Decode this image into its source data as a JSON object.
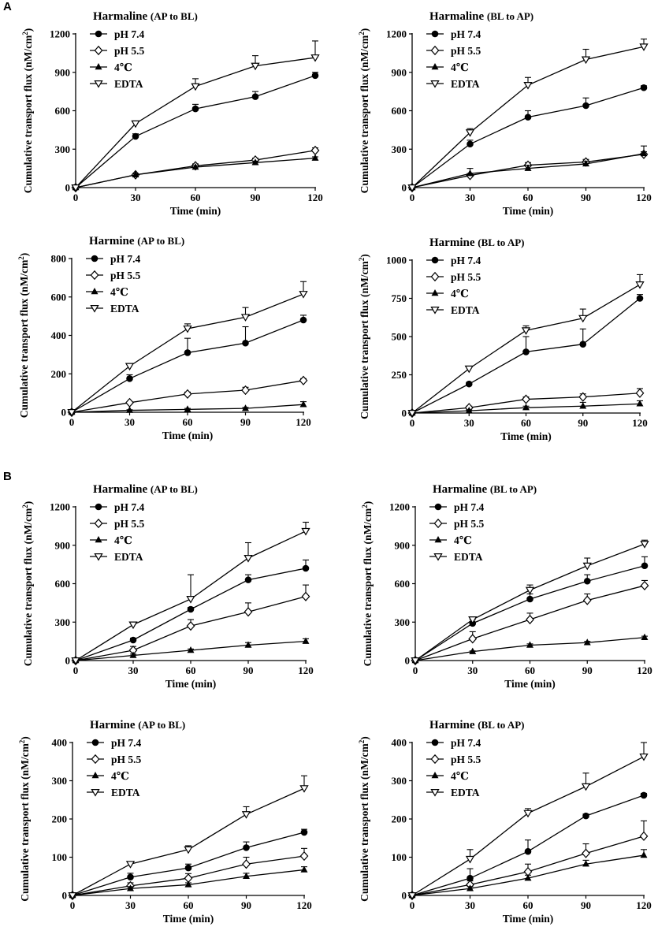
{
  "figure": {
    "panel_label_a": "A",
    "panel_label_b": "B"
  },
  "chart_data": [
    {
      "type": "line",
      "title_bold": "Harmaline",
      "title_dir": "(AP to BL)",
      "xlabel": "Time (min)",
      "ylabel": "Cumulative transport flux (nM/cm",
      "ylabel_sup": "2",
      "ylabel_end": ")",
      "x": [
        0,
        30,
        60,
        90,
        120
      ],
      "xlim": [
        0,
        120
      ],
      "ylim": [
        0,
        1200
      ],
      "yticks": [
        0,
        300,
        600,
        900,
        1200
      ],
      "series": [
        {
          "name": "pH 7.4",
          "marker": "circle",
          "values": [
            0,
            400,
            615,
            710,
            875
          ],
          "err": [
            0,
            20,
            35,
            40,
            25
          ]
        },
        {
          "name": "pH 5.5",
          "marker": "diamond",
          "values": [
            0,
            100,
            170,
            215,
            290
          ],
          "err": [
            0,
            10,
            15,
            15,
            20
          ]
        },
        {
          "name": "4℃",
          "marker": "triangle",
          "values": [
            0,
            100,
            160,
            195,
            230
          ],
          "err": [
            0,
            8,
            12,
            12,
            10
          ]
        },
        {
          "name": "EDTA",
          "marker": "tri-down",
          "values": [
            0,
            500,
            790,
            950,
            1015
          ],
          "err": [
            0,
            20,
            60,
            80,
            130
          ]
        }
      ]
    },
    {
      "type": "line",
      "title_bold": "Harmaline",
      "title_dir": "(BL to AP)",
      "xlabel": "Time (min)",
      "ylabel": "Cumulative transport flux (nM/cm",
      "ylabel_sup": "2",
      "ylabel_end": ")",
      "x": [
        0,
        30,
        60,
        90,
        120
      ],
      "xlim": [
        0,
        120
      ],
      "ylim": [
        0,
        1200
      ],
      "yticks": [
        0,
        300,
        600,
        900,
        1200
      ],
      "series": [
        {
          "name": "pH 7.4",
          "marker": "circle",
          "values": [
            0,
            340,
            550,
            640,
            780
          ],
          "err": [
            0,
            30,
            50,
            60,
            15
          ]
        },
        {
          "name": "pH 5.5",
          "marker": "diamond",
          "values": [
            0,
            95,
            175,
            200,
            260
          ],
          "err": [
            0,
            15,
            20,
            20,
            20
          ]
        },
        {
          "name": "4℃",
          "marker": "triangle",
          "values": [
            0,
            110,
            150,
            185,
            265
          ],
          "err": [
            0,
            40,
            25,
            20,
            60
          ]
        },
        {
          "name": "EDTA",
          "marker": "tri-down",
          "values": [
            0,
            430,
            800,
            1000,
            1100
          ],
          "err": [
            0,
            30,
            60,
            80,
            60
          ]
        }
      ]
    },
    {
      "type": "line",
      "title_bold": "Harmine",
      "title_dir": "(AP to BL)",
      "xlabel": "Time (min)",
      "ylabel": "Cumulative transport flux (nM/cm",
      "ylabel_sup": "2",
      "ylabel_end": ")",
      "x": [
        0,
        30,
        60,
        90,
        120
      ],
      "xlim": [
        0,
        120
      ],
      "ylim": [
        0,
        800
      ],
      "yticks": [
        0,
        200,
        400,
        600,
        800
      ],
      "series": [
        {
          "name": "pH 7.4",
          "marker": "circle",
          "values": [
            0,
            175,
            310,
            360,
            480
          ],
          "err": [
            0,
            20,
            75,
            85,
            25
          ]
        },
        {
          "name": "pH 5.5",
          "marker": "diamond",
          "values": [
            0,
            50,
            95,
            115,
            165
          ],
          "err": [
            0,
            5,
            10,
            15,
            10
          ]
        },
        {
          "name": "4℃",
          "marker": "triangle",
          "values": [
            0,
            10,
            15,
            20,
            40
          ],
          "err": [
            0,
            3,
            5,
            5,
            15
          ]
        },
        {
          "name": "EDTA",
          "marker": "tri-down",
          "values": [
            0,
            240,
            435,
            495,
            615
          ],
          "err": [
            0,
            10,
            25,
            50,
            65
          ]
        }
      ]
    },
    {
      "type": "line",
      "title_bold": "Harmine",
      "title_dir": "(BL to AP)",
      "xlabel": "Time (min)",
      "ylabel": "Cumulative transport flux (nM/cm",
      "ylabel_sup": "2",
      "ylabel_end": ")",
      "x": [
        0,
        30,
        60,
        90,
        120
      ],
      "xlim": [
        0,
        120
      ],
      "ylim": [
        0,
        1000
      ],
      "yticks": [
        0,
        250,
        500,
        750,
        1000
      ],
      "series": [
        {
          "name": "pH 7.4",
          "marker": "circle",
          "values": [
            0,
            190,
            400,
            450,
            750
          ],
          "err": [
            0,
            10,
            100,
            100,
            25
          ]
        },
        {
          "name": "pH 5.5",
          "marker": "diamond",
          "values": [
            0,
            35,
            90,
            105,
            130
          ],
          "err": [
            0,
            10,
            15,
            20,
            30
          ]
        },
        {
          "name": "4℃",
          "marker": "triangle",
          "values": [
            0,
            15,
            35,
            45,
            60
          ],
          "err": [
            0,
            5,
            10,
            25,
            20
          ]
        },
        {
          "name": "EDTA",
          "marker": "tri-down",
          "values": [
            0,
            290,
            540,
            620,
            840
          ],
          "err": [
            0,
            15,
            30,
            60,
            65
          ]
        }
      ]
    },
    {
      "type": "line",
      "title_bold": "Harmaline",
      "title_dir": "(AP to BL)",
      "xlabel": "Time (min)",
      "ylabel": "Cumulative transport flux (nM/cm",
      "ylabel_sup": "2",
      "ylabel_end": ")",
      "x": [
        0,
        30,
        60,
        90,
        120
      ],
      "xlim": [
        0,
        120
      ],
      "ylim": [
        0,
        1200
      ],
      "yticks": [
        0,
        300,
        600,
        900,
        1200
      ],
      "series": [
        {
          "name": "pH 7.4",
          "marker": "circle",
          "values": [
            0,
            160,
            400,
            630,
            720
          ],
          "err": [
            0,
            15,
            15,
            40,
            65
          ]
        },
        {
          "name": "pH 5.5",
          "marker": "diamond",
          "values": [
            0,
            80,
            270,
            380,
            500
          ],
          "err": [
            0,
            30,
            50,
            70,
            90
          ]
        },
        {
          "name": "4℃",
          "marker": "triangle",
          "values": [
            0,
            40,
            80,
            120,
            150
          ],
          "err": [
            0,
            10,
            10,
            20,
            20
          ]
        },
        {
          "name": "EDTA",
          "marker": "tri-down",
          "values": [
            0,
            280,
            480,
            800,
            1010
          ],
          "err": [
            0,
            20,
            190,
            120,
            70
          ]
        }
      ]
    },
    {
      "type": "line",
      "title_bold": "Harmaline",
      "title_dir": "(BL to AP)",
      "xlabel": "Time (min)",
      "ylabel": "Cumulative transport flux (nM/cm",
      "ylabel_sup": "2",
      "ylabel_end": ")",
      "x": [
        0,
        30,
        60,
        90,
        120
      ],
      "xlim": [
        0,
        120
      ],
      "ylim": [
        0,
        1200
      ],
      "yticks": [
        0,
        300,
        600,
        900,
        1200
      ],
      "series": [
        {
          "name": "pH 7.4",
          "marker": "circle",
          "values": [
            0,
            290,
            480,
            620,
            740
          ],
          "err": [
            0,
            30,
            40,
            50,
            70
          ]
        },
        {
          "name": "pH 5.5",
          "marker": "diamond",
          "values": [
            0,
            170,
            320,
            470,
            585
          ],
          "err": [
            0,
            55,
            50,
            50,
            40
          ]
        },
        {
          "name": "4℃",
          "marker": "triangle",
          "values": [
            0,
            70,
            120,
            140,
            180
          ],
          "err": [
            0,
            5,
            10,
            10,
            10
          ]
        },
        {
          "name": "EDTA",
          "marker": "tri-down",
          "values": [
            0,
            320,
            550,
            740,
            910
          ],
          "err": [
            0,
            20,
            40,
            60,
            30
          ]
        }
      ]
    },
    {
      "type": "line",
      "title_bold": "Harmine",
      "title_dir": "(AP to BL)",
      "xlabel": "Time (min)",
      "ylabel": "Cumulative transport flux (nM/cm",
      "ylabel_sup": "2",
      "ylabel_end": ")",
      "x": [
        0,
        30,
        60,
        90,
        120
      ],
      "xlim": [
        0,
        120
      ],
      "ylim": [
        0,
        400
      ],
      "yticks": [
        0,
        100,
        200,
        300,
        400
      ],
      "series": [
        {
          "name": "pH 7.4",
          "marker": "circle",
          "values": [
            0,
            48,
            72,
            125,
            165
          ],
          "err": [
            0,
            10,
            10,
            15,
            8
          ]
        },
        {
          "name": "pH 5.5",
          "marker": "diamond",
          "values": [
            0,
            25,
            45,
            82,
            103
          ],
          "err": [
            0,
            8,
            12,
            18,
            20
          ]
        },
        {
          "name": "4℃",
          "marker": "triangle",
          "values": [
            0,
            18,
            28,
            50,
            67
          ],
          "err": [
            0,
            5,
            5,
            8,
            8
          ]
        },
        {
          "name": "EDTA",
          "marker": "tri-down",
          "values": [
            0,
            82,
            120,
            212,
            280
          ],
          "err": [
            0,
            5,
            10,
            20,
            33
          ]
        }
      ]
    },
    {
      "type": "line",
      "title_bold": "Harmine",
      "title_dir": "(BL to AP)",
      "xlabel": "Time (min)",
      "ylabel": "Cumulative transport flux (nM/cm",
      "ylabel_sup": "2",
      "ylabel_end": ")",
      "x": [
        0,
        30,
        60,
        90,
        120
      ],
      "xlim": [
        0,
        120
      ],
      "ylim": [
        0,
        400
      ],
      "yticks": [
        0,
        100,
        200,
        300,
        400
      ],
      "series": [
        {
          "name": "pH 7.4",
          "marker": "circle",
          "values": [
            0,
            45,
            115,
            208,
            262
          ],
          "err": [
            0,
            25,
            30,
            5,
            5
          ]
        },
        {
          "name": "pH 5.5",
          "marker": "diamond",
          "values": [
            0,
            28,
            62,
            110,
            155
          ],
          "err": [
            0,
            10,
            20,
            25,
            40
          ]
        },
        {
          "name": "4℃",
          "marker": "triangle",
          "values": [
            0,
            18,
            45,
            82,
            105
          ],
          "err": [
            0,
            5,
            8,
            10,
            15
          ]
        },
        {
          "name": "EDTA",
          "marker": "tri-down",
          "values": [
            0,
            95,
            215,
            285,
            363
          ],
          "err": [
            0,
            25,
            12,
            35,
            37
          ]
        }
      ]
    }
  ]
}
